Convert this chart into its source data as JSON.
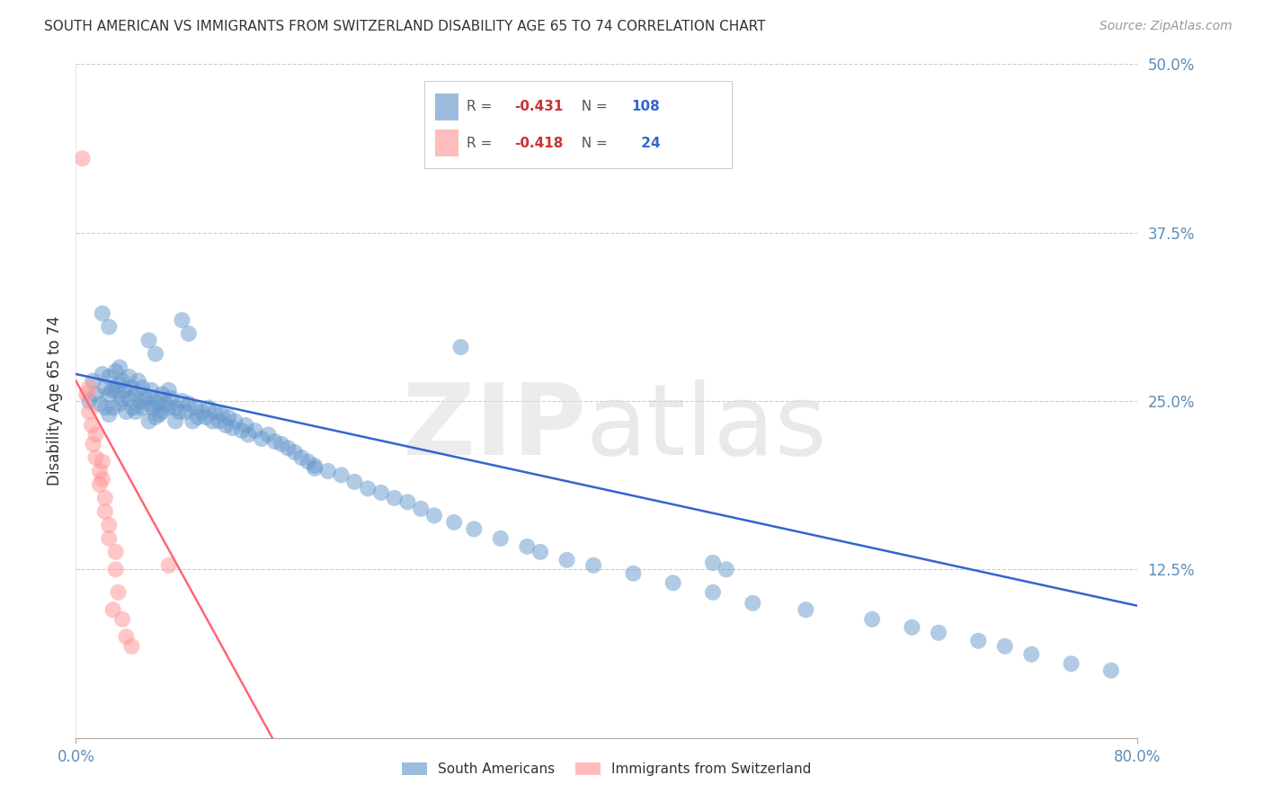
{
  "title": "SOUTH AMERICAN VS IMMIGRANTS FROM SWITZERLAND DISABILITY AGE 65 TO 74 CORRELATION CHART",
  "source": "Source: ZipAtlas.com",
  "ylabel": "Disability Age 65 to 74",
  "xlim": [
    0.0,
    0.8
  ],
  "ylim": [
    0.0,
    0.5
  ],
  "yticks": [
    0.0,
    0.125,
    0.25,
    0.375,
    0.5
  ],
  "ytick_labels": [
    "",
    "12.5%",
    "25.0%",
    "37.5%",
    "50.0%"
  ],
  "xtick_labels": [
    "0.0%",
    "80.0%"
  ],
  "blue_color": "#6699CC",
  "pink_color": "#FF9999",
  "line_blue": "#3366CC",
  "line_pink": "#FF6677",
  "background": "#FFFFFF",
  "grid_color": "#CCCCCC",
  "tick_label_color": "#5B8DB8",
  "title_color": "#333333",
  "blue_line_x": [
    0.0,
    0.8
  ],
  "blue_line_y": [
    0.27,
    0.098
  ],
  "pink_line_x": [
    0.0,
    0.148
  ],
  "pink_line_y": [
    0.265,
    0.0
  ],
  "blue_scatter_x": [
    0.01,
    0.013,
    0.015,
    0.018,
    0.02,
    0.022,
    0.022,
    0.025,
    0.025,
    0.025,
    0.027,
    0.028,
    0.03,
    0.03,
    0.032,
    0.033,
    0.033,
    0.035,
    0.035,
    0.037,
    0.038,
    0.04,
    0.04,
    0.042,
    0.043,
    0.045,
    0.045,
    0.047,
    0.048,
    0.05,
    0.05,
    0.052,
    0.055,
    0.055,
    0.057,
    0.058,
    0.06,
    0.06,
    0.062,
    0.063,
    0.065,
    0.065,
    0.068,
    0.07,
    0.07,
    0.072,
    0.075,
    0.075,
    0.078,
    0.08,
    0.083,
    0.085,
    0.088,
    0.09,
    0.092,
    0.095,
    0.098,
    0.1,
    0.103,
    0.105,
    0.108,
    0.11,
    0.113,
    0.115,
    0.118,
    0.12,
    0.125,
    0.128,
    0.13,
    0.135,
    0.14,
    0.145,
    0.15,
    0.155,
    0.16,
    0.165,
    0.17,
    0.175,
    0.18,
    0.19,
    0.2,
    0.21,
    0.22,
    0.23,
    0.24,
    0.25,
    0.26,
    0.27,
    0.285,
    0.3,
    0.32,
    0.34,
    0.35,
    0.37,
    0.39,
    0.42,
    0.45,
    0.48,
    0.51,
    0.55,
    0.6,
    0.63,
    0.65,
    0.68,
    0.7,
    0.72,
    0.75,
    0.78
  ],
  "blue_scatter_y": [
    0.25,
    0.265,
    0.255,
    0.248,
    0.27,
    0.26,
    0.245,
    0.268,
    0.255,
    0.24,
    0.258,
    0.245,
    0.272,
    0.258,
    0.262,
    0.275,
    0.248,
    0.265,
    0.252,
    0.258,
    0.242,
    0.268,
    0.252,
    0.26,
    0.245,
    0.255,
    0.242,
    0.265,
    0.25,
    0.26,
    0.245,
    0.252,
    0.248,
    0.235,
    0.258,
    0.245,
    0.252,
    0.238,
    0.248,
    0.24,
    0.255,
    0.242,
    0.248,
    0.258,
    0.245,
    0.252,
    0.245,
    0.235,
    0.242,
    0.25,
    0.242,
    0.248,
    0.235,
    0.245,
    0.238,
    0.242,
    0.238,
    0.245,
    0.235,
    0.242,
    0.235,
    0.24,
    0.232,
    0.238,
    0.23,
    0.235,
    0.228,
    0.232,
    0.225,
    0.228,
    0.222,
    0.225,
    0.22,
    0.218,
    0.215,
    0.212,
    0.208,
    0.205,
    0.202,
    0.198,
    0.195,
    0.19,
    0.185,
    0.182,
    0.178,
    0.175,
    0.17,
    0.165,
    0.16,
    0.155,
    0.148,
    0.142,
    0.138,
    0.132,
    0.128,
    0.122,
    0.115,
    0.108,
    0.1,
    0.095,
    0.088,
    0.082,
    0.078,
    0.072,
    0.068,
    0.062,
    0.055,
    0.05
  ],
  "blue_scatter_extra_x": [
    0.02,
    0.025,
    0.055,
    0.06,
    0.08,
    0.085,
    0.18,
    0.29,
    0.48,
    0.49
  ],
  "blue_scatter_extra_y": [
    0.315,
    0.305,
    0.295,
    0.285,
    0.31,
    0.3,
    0.2,
    0.29,
    0.13,
    0.125
  ],
  "pink_scatter_x": [
    0.005,
    0.008,
    0.01,
    0.01,
    0.012,
    0.013,
    0.015,
    0.015,
    0.018,
    0.018,
    0.02,
    0.02,
    0.022,
    0.022,
    0.025,
    0.025,
    0.028,
    0.03,
    0.03,
    0.032,
    0.035,
    0.038,
    0.042,
    0.07
  ],
  "pink_scatter_y": [
    0.43,
    0.255,
    0.26,
    0.242,
    0.232,
    0.218,
    0.225,
    0.208,
    0.198,
    0.188,
    0.205,
    0.192,
    0.178,
    0.168,
    0.158,
    0.148,
    0.095,
    0.138,
    0.125,
    0.108,
    0.088,
    0.075,
    0.068,
    0.128
  ]
}
